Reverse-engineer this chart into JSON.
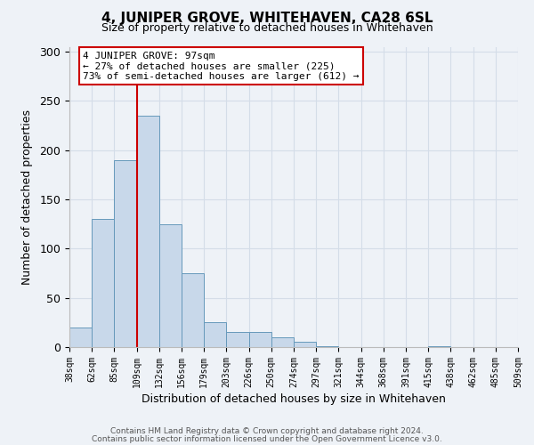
{
  "title": "4, JUNIPER GROVE, WHITEHAVEN, CA28 6SL",
  "subtitle": "Size of property relative to detached houses in Whitehaven",
  "xlabel": "Distribution of detached houses by size in Whitehaven",
  "ylabel": "Number of detached properties",
  "bar_heights": [
    20,
    130,
    190,
    235,
    125,
    75,
    25,
    15,
    15,
    10,
    5,
    1,
    0,
    0,
    0,
    0,
    1,
    0,
    0,
    0
  ],
  "bin_labels": [
    "38sqm",
    "62sqm",
    "85sqm",
    "109sqm",
    "132sqm",
    "156sqm",
    "179sqm",
    "203sqm",
    "226sqm",
    "250sqm",
    "274sqm",
    "297sqm",
    "321sqm",
    "344sqm",
    "368sqm",
    "391sqm",
    "415sqm",
    "438sqm",
    "462sqm",
    "485sqm",
    "509sqm"
  ],
  "bar_color": "#c8d8ea",
  "bar_edge_color": "#6699bb",
  "grid_color": "#d4dde8",
  "background_color": "#eef2f7",
  "vline_x_idx": 3,
  "vline_color": "#cc0000",
  "annotation_line1": "4 JUNIPER GROVE: 97sqm",
  "annotation_line2": "← 27% of detached houses are smaller (225)",
  "annotation_line3": "73% of semi-detached houses are larger (612) →",
  "annotation_box_facecolor": "#ffffff",
  "annotation_box_edgecolor": "#cc0000",
  "ylim": [
    0,
    305
  ],
  "yticks": [
    0,
    50,
    100,
    150,
    200,
    250,
    300
  ],
  "footer1": "Contains HM Land Registry data © Crown copyright and database right 2024.",
  "footer2": "Contains public sector information licensed under the Open Government Licence v3.0."
}
